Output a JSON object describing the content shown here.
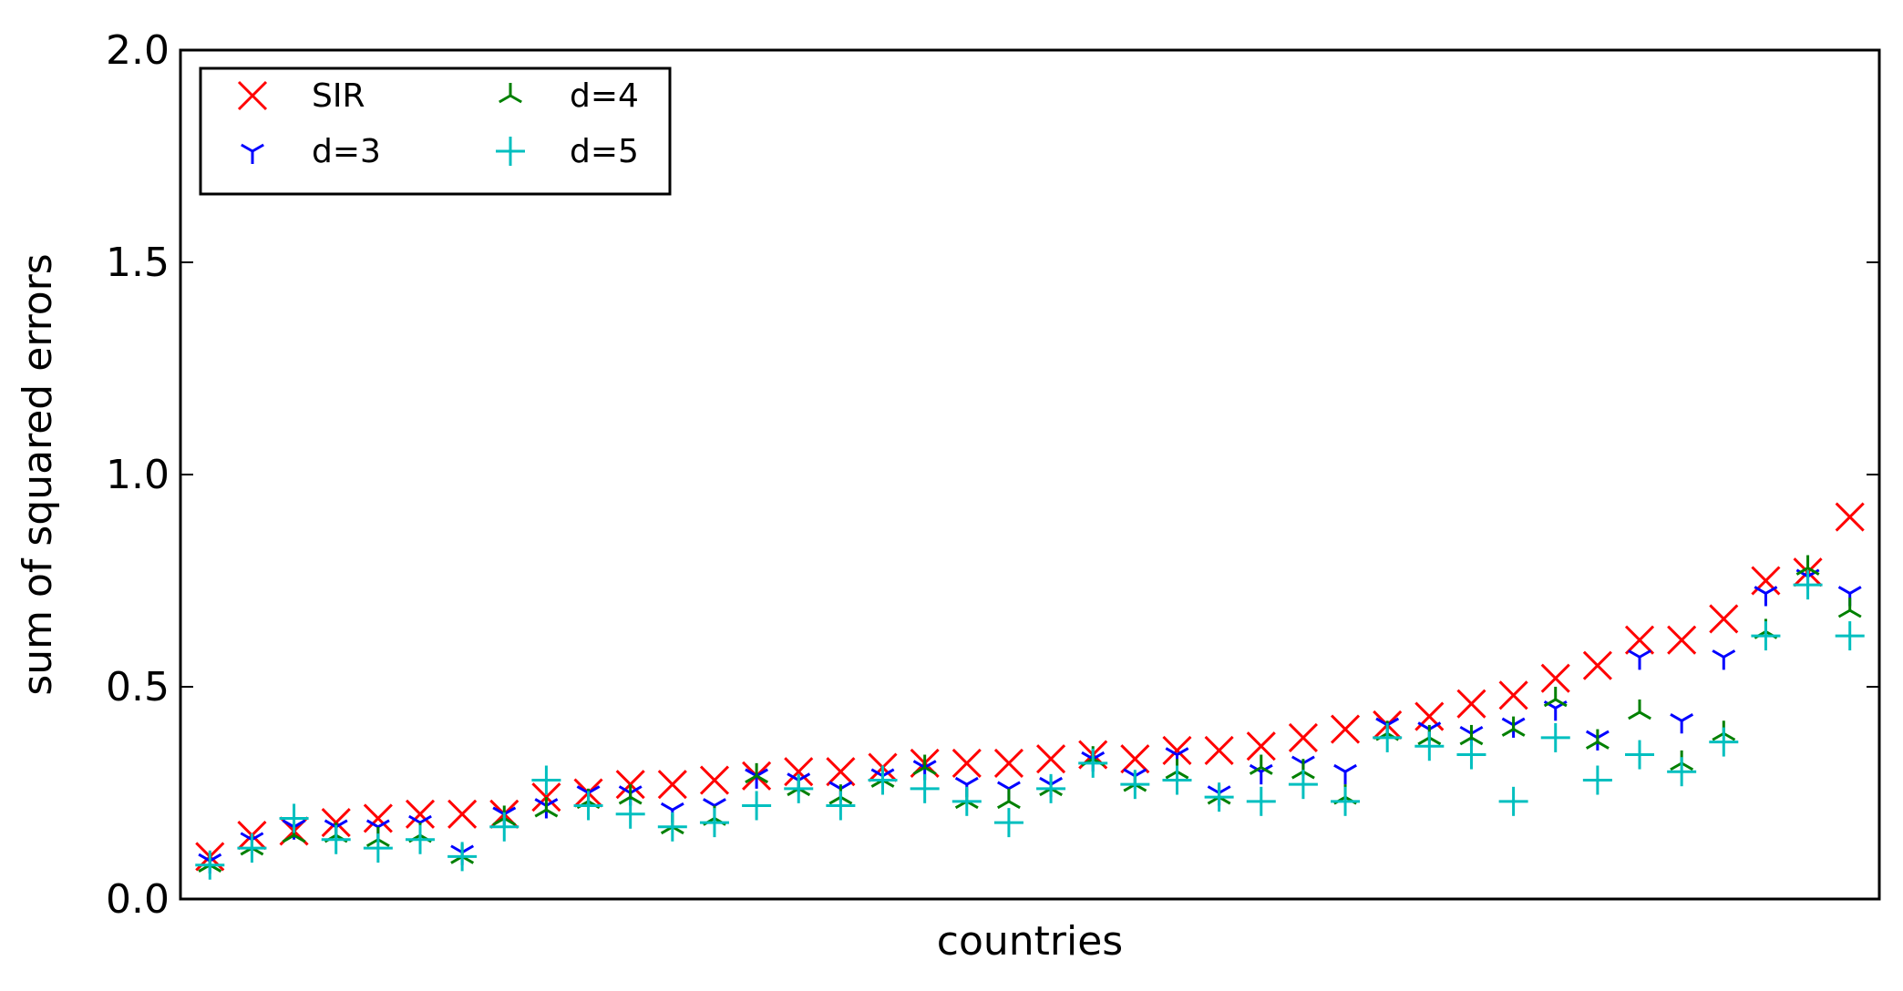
{
  "chart_data": {
    "type": "scatter",
    "title": "",
    "xlabel": "countries",
    "ylabel": "sum of squared errors",
    "ylim": [
      0.0,
      2.0
    ],
    "yticks": [
      "0.0",
      "0.5",
      "1.0",
      "1.5",
      "2.0"
    ],
    "xticks": [],
    "grid": false,
    "legend_position": "top-left",
    "legend_columns": 2,
    "x": [
      1,
      2,
      3,
      4,
      5,
      6,
      7,
      8,
      9,
      10,
      11,
      12,
      13,
      14,
      15,
      16,
      17,
      18,
      19,
      20,
      21,
      22,
      23,
      24,
      25,
      26,
      27,
      28,
      29,
      30,
      31,
      32,
      33,
      34,
      35,
      36,
      37,
      38,
      39,
      40
    ],
    "series": [
      {
        "name": "SIR",
        "marker": "x",
        "color": "#ff0000",
        "values": [
          0.1,
          0.15,
          0.16,
          0.18,
          0.19,
          0.2,
          0.2,
          0.2,
          0.24,
          0.25,
          0.27,
          0.27,
          0.28,
          0.29,
          0.3,
          0.3,
          0.31,
          0.32,
          0.32,
          0.32,
          0.33,
          0.34,
          0.33,
          0.35,
          0.35,
          0.36,
          0.38,
          0.4,
          0.41,
          0.43,
          0.46,
          0.48,
          0.52,
          0.55,
          0.61,
          0.61,
          0.66,
          0.75,
          0.77,
          0.9
        ]
      },
      {
        "name": "d=3",
        "marker": "tri_down",
        "color": "#0000ff",
        "values": [
          0.09,
          0.14,
          0.17,
          0.17,
          0.17,
          0.18,
          0.11,
          0.2,
          0.22,
          0.25,
          0.25,
          0.21,
          0.22,
          0.29,
          0.28,
          0.26,
          0.29,
          0.31,
          0.27,
          0.26,
          0.27,
          0.33,
          0.29,
          0.34,
          0.25,
          0.3,
          0.32,
          0.3,
          0.41,
          0.4,
          0.39,
          0.41,
          0.45,
          0.38,
          0.57,
          0.42,
          0.57,
          0.72,
          0.76,
          0.72
        ]
      },
      {
        "name": "d=4",
        "marker": "tri_up",
        "color": "#008000",
        "values": [
          0.08,
          0.12,
          0.15,
          0.15,
          0.14,
          0.15,
          0.1,
          0.19,
          0.21,
          0.23,
          0.24,
          0.17,
          0.19,
          0.29,
          0.26,
          0.24,
          0.28,
          0.31,
          0.23,
          0.23,
          0.26,
          0.33,
          0.27,
          0.3,
          0.24,
          0.31,
          0.3,
          0.24,
          0.39,
          0.38,
          0.38,
          0.4,
          0.47,
          0.37,
          0.44,
          0.32,
          0.39,
          0.63,
          0.78,
          0.68
        ]
      },
      {
        "name": "d=5",
        "marker": "plus",
        "color": "#00bfbf",
        "values": [
          0.08,
          0.12,
          0.19,
          0.14,
          0.12,
          0.14,
          0.1,
          0.17,
          0.28,
          0.22,
          0.2,
          0.17,
          0.18,
          0.22,
          0.26,
          0.22,
          0.28,
          0.26,
          0.23,
          0.18,
          0.26,
          0.32,
          0.27,
          0.28,
          0.24,
          0.23,
          0.27,
          0.23,
          0.38,
          0.36,
          0.34,
          0.23,
          0.38,
          0.28,
          0.34,
          0.3,
          0.37,
          0.62,
          0.74,
          0.62
        ]
      }
    ]
  }
}
